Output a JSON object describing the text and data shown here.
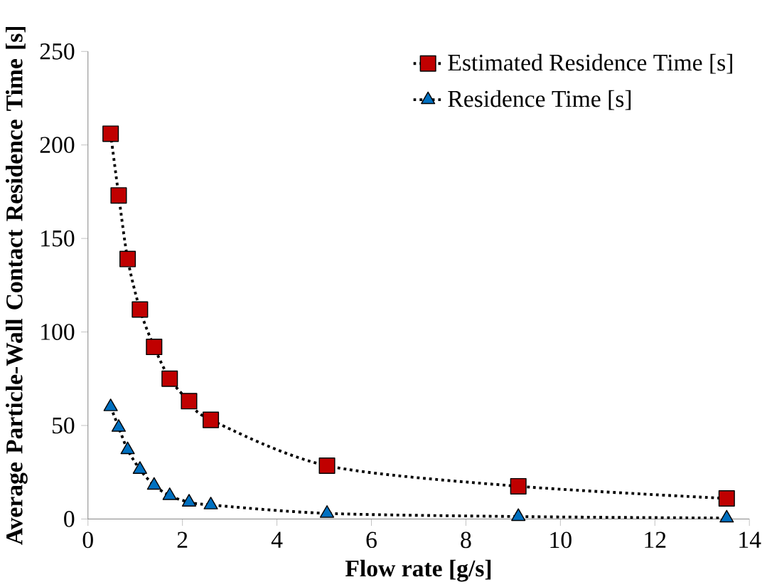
{
  "chart_data": {
    "type": "line",
    "xlabel": "Flow rate [g/s]",
    "ylabel": "Average Particle-Wall Contact Residence Time [s]",
    "x": [
      0.48,
      0.65,
      0.84,
      1.1,
      1.4,
      1.73,
      2.14,
      2.6,
      5.06,
      9.11,
      13.52
    ],
    "series": [
      {
        "name": "Estimated Residence Time [s]",
        "color": "#c00000",
        "marker": "square",
        "line_style": "dotted",
        "values": [
          206,
          173,
          139,
          112,
          92,
          75,
          63,
          53,
          28.5,
          17.5,
          11
        ]
      },
      {
        "name": "Residence Time [s]",
        "color": "#0070c0",
        "marker": "triangle",
        "line_style": "dotted",
        "values": [
          60,
          49,
          37,
          26.5,
          18,
          12.5,
          9,
          7.5,
          3,
          1.3,
          0.5
        ]
      }
    ],
    "xlim": [
      0,
      14
    ],
    "xticks": [
      0,
      2,
      4,
      6,
      8,
      10,
      12,
      14
    ],
    "ylim": [
      0,
      250
    ],
    "yticks": [
      0,
      50,
      100,
      150,
      200,
      250
    ],
    "grid": false,
    "legend": "top right"
  }
}
